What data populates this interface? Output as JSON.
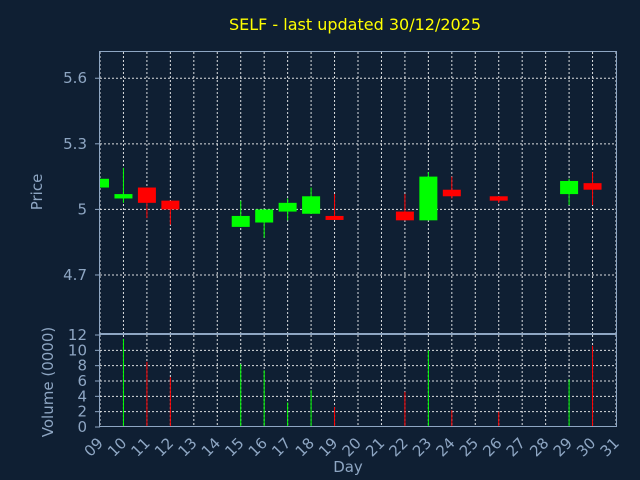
{
  "chart_data": {
    "type": "candlestick",
    "title": "SELF - last updated 30/12/2025",
    "xlabel": "Day",
    "x_ticks": [
      "09",
      "10",
      "11",
      "12",
      "13",
      "14",
      "15",
      "16",
      "17",
      "18",
      "19",
      "20",
      "21",
      "22",
      "23",
      "24",
      "25",
      "26",
      "27",
      "28",
      "29",
      "30",
      "31"
    ],
    "price_panel": {
      "ylabel": "Price",
      "ylim": [
        4.43,
        5.72
      ],
      "y_ticks": [
        4.7,
        5,
        5.3,
        5.6
      ],
      "y_tick_labels": [
        "4.7",
        "5",
        "5.3",
        "5.6"
      ],
      "up_color": "#00ff00",
      "down_color": "#ff0000",
      "candles": [
        {
          "day": 9,
          "open": 5.1,
          "high": 5.14,
          "low": 5.1,
          "close": 5.14
        },
        {
          "day": 10,
          "open": 5.05,
          "high": 5.19,
          "low": 5.03,
          "close": 5.07
        },
        {
          "day": 11,
          "open": 5.1,
          "high": 5.1,
          "low": 4.96,
          "close": 5.03
        },
        {
          "day": 12,
          "open": 5.04,
          "high": 5.04,
          "low": 4.93,
          "close": 5.0
        },
        {
          "day": 15,
          "open": 4.92,
          "high": 5.04,
          "low": 4.92,
          "close": 4.97
        },
        {
          "day": 16,
          "open": 4.94,
          "high": 5.0,
          "low": 4.87,
          "close": 5.0
        },
        {
          "day": 17,
          "open": 4.99,
          "high": 5.05,
          "low": 4.95,
          "close": 5.03
        },
        {
          "day": 18,
          "open": 4.98,
          "high": 5.1,
          "low": 4.98,
          "close": 5.06
        },
        {
          "day": 19,
          "open": 4.97,
          "high": 5.07,
          "low": 4.96,
          "close": 4.96
        },
        {
          "day": 22,
          "open": 4.99,
          "high": 5.07,
          "low": 4.95,
          "close": 4.95
        },
        {
          "day": 23,
          "open": 4.95,
          "high": 5.17,
          "low": 4.95,
          "close": 5.15
        },
        {
          "day": 24,
          "open": 5.09,
          "high": 5.15,
          "low": 5.05,
          "close": 5.06
        },
        {
          "day": 26,
          "open": 5.06,
          "high": 5.06,
          "low": 5.03,
          "close": 5.04
        },
        {
          "day": 29,
          "open": 5.07,
          "high": 5.14,
          "low": 5.02,
          "close": 5.13
        },
        {
          "day": 30,
          "open": 5.12,
          "high": 5.17,
          "low": 5.02,
          "close": 5.09
        }
      ]
    },
    "volume_panel": {
      "ylabel": "Volume (0000)",
      "ylim": [
        0,
        12
      ],
      "y_ticks": [
        0,
        2,
        4,
        6,
        8,
        10,
        12
      ],
      "bars": [
        {
          "day": 10,
          "value": 11.5,
          "direction": "up"
        },
        {
          "day": 11,
          "value": 8.5,
          "direction": "down"
        },
        {
          "day": 12,
          "value": 6.5,
          "direction": "down"
        },
        {
          "day": 15,
          "value": 8.2,
          "direction": "up"
        },
        {
          "day": 16,
          "value": 7.4,
          "direction": "up"
        },
        {
          "day": 17,
          "value": 3.2,
          "direction": "up"
        },
        {
          "day": 18,
          "value": 4.8,
          "direction": "up"
        },
        {
          "day": 19,
          "value": 2.6,
          "direction": "down"
        },
        {
          "day": 22,
          "value": 4.6,
          "direction": "down"
        },
        {
          "day": 23,
          "value": 10.0,
          "direction": "up"
        },
        {
          "day": 24,
          "value": 2.2,
          "direction": "down"
        },
        {
          "day": 26,
          "value": 2.0,
          "direction": "down"
        },
        {
          "day": 29,
          "value": 6.2,
          "direction": "up"
        },
        {
          "day": 30,
          "value": 10.6,
          "direction": "down"
        }
      ]
    },
    "grid": true,
    "colors": {
      "background": "#0f1f33",
      "axis": "#8ea6c3",
      "title": "#ffff00",
      "grid": "#ffffff"
    }
  }
}
